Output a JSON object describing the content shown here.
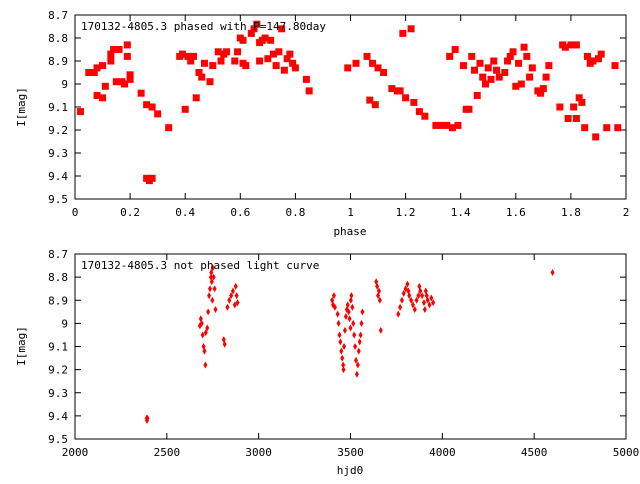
{
  "chart_data": [
    {
      "type": "scatter",
      "title": "170132-4805.3 phased with P=147.80day",
      "xlabel": "phase",
      "ylabel": "I[mag]",
      "xlim": [
        0,
        2
      ],
      "ylim": [
        9.5,
        8.7
      ],
      "y_inverted": true,
      "x_ticks": [
        "0",
        "0.2",
        "0.4",
        "0.6",
        "0.8",
        "1",
        "1.2",
        "1.4",
        "1.6",
        "1.8",
        "2"
      ],
      "y_ticks": [
        "8.7",
        "8.8",
        "8.9",
        "9",
        "9.1",
        "9.2",
        "9.3",
        "9.4",
        "9.5"
      ],
      "grid": false,
      "marker": "square",
      "color": "#ff0000",
      "points": [
        [
          0.02,
          9.12
        ],
        [
          0.05,
          8.95
        ],
        [
          0.07,
          8.95
        ],
        [
          0.08,
          8.93
        ],
        [
          0.08,
          9.05
        ],
        [
          0.1,
          9.06
        ],
        [
          0.1,
          8.92
        ],
        [
          0.11,
          9.01
        ],
        [
          0.13,
          8.9
        ],
        [
          0.13,
          8.87
        ],
        [
          0.14,
          8.85
        ],
        [
          0.15,
          8.99
        ],
        [
          0.16,
          8.85
        ],
        [
          0.17,
          8.99
        ],
        [
          0.18,
          9.0
        ],
        [
          0.19,
          8.88
        ],
        [
          0.19,
          8.83
        ],
        [
          0.2,
          8.96
        ],
        [
          0.2,
          8.98
        ],
        [
          0.24,
          9.04
        ],
        [
          0.26,
          9.09
        ],
        [
          0.26,
          9.41
        ],
        [
          0.27,
          9.42
        ],
        [
          0.28,
          9.41
        ],
        [
          0.28,
          9.1
        ],
        [
          0.3,
          9.13
        ],
        [
          0.34,
          9.19
        ],
        [
          0.38,
          8.88
        ],
        [
          0.39,
          8.87
        ],
        [
          0.4,
          9.11
        ],
        [
          0.41,
          8.88
        ],
        [
          0.42,
          8.9
        ],
        [
          0.43,
          8.88
        ],
        [
          0.44,
          9.06
        ],
        [
          0.45,
          8.95
        ],
        [
          0.46,
          8.97
        ],
        [
          0.47,
          8.91
        ],
        [
          0.49,
          8.99
        ],
        [
          0.5,
          8.92
        ],
        [
          0.52,
          8.86
        ],
        [
          0.53,
          8.9
        ],
        [
          0.54,
          8.87
        ],
        [
          0.55,
          8.86
        ],
        [
          0.58,
          8.9
        ],
        [
          0.59,
          8.86
        ],
        [
          0.6,
          8.8
        ],
        [
          0.61,
          8.81
        ],
        [
          0.61,
          8.91
        ],
        [
          0.62,
          8.92
        ],
        [
          0.64,
          8.78
        ],
        [
          0.65,
          8.76
        ],
        [
          0.66,
          8.74
        ],
        [
          0.67,
          8.82
        ],
        [
          0.67,
          8.9
        ],
        [
          0.68,
          8.81
        ],
        [
          0.69,
          8.8
        ],
        [
          0.7,
          8.89
        ],
        [
          0.71,
          8.81
        ],
        [
          0.72,
          8.87
        ],
        [
          0.73,
          8.92
        ],
        [
          0.74,
          8.86
        ],
        [
          0.75,
          8.76
        ],
        [
          0.76,
          8.94
        ],
        [
          0.77,
          8.89
        ],
        [
          0.78,
          8.87
        ],
        [
          0.79,
          8.91
        ],
        [
          0.8,
          8.93
        ],
        [
          0.84,
          8.98
        ],
        [
          0.85,
          9.03
        ],
        [
          0.99,
          8.93
        ],
        [
          1.02,
          8.91
        ],
        [
          1.06,
          8.88
        ],
        [
          1.07,
          9.07
        ],
        [
          1.08,
          8.91
        ],
        [
          1.09,
          9.09
        ],
        [
          1.1,
          8.93
        ],
        [
          1.12,
          8.95
        ],
        [
          1.15,
          9.02
        ],
        [
          1.17,
          9.03
        ],
        [
          1.18,
          9.03
        ],
        [
          1.19,
          8.78
        ],
        [
          1.2,
          9.06
        ],
        [
          1.22,
          8.76
        ],
        [
          1.23,
          9.08
        ],
        [
          1.25,
          9.12
        ],
        [
          1.27,
          9.14
        ],
        [
          1.31,
          9.18
        ],
        [
          1.33,
          9.18
        ],
        [
          1.35,
          9.18
        ],
        [
          1.36,
          8.88
        ],
        [
          1.37,
          9.19
        ],
        [
          1.38,
          8.85
        ],
        [
          1.39,
          9.18
        ],
        [
          1.41,
          8.92
        ],
        [
          1.42,
          9.11
        ],
        [
          1.43,
          9.11
        ],
        [
          1.44,
          8.88
        ],
        [
          1.45,
          8.94
        ],
        [
          1.46,
          9.05
        ],
        [
          1.47,
          8.91
        ],
        [
          1.48,
          8.97
        ],
        [
          1.49,
          9.0
        ],
        [
          1.5,
          8.93
        ],
        [
          1.51,
          8.98
        ],
        [
          1.52,
          8.9
        ],
        [
          1.53,
          8.94
        ],
        [
          1.54,
          8.97
        ],
        [
          1.56,
          8.95
        ],
        [
          1.57,
          8.9
        ],
        [
          1.58,
          8.88
        ],
        [
          1.59,
          8.86
        ],
        [
          1.6,
          9.01
        ],
        [
          1.61,
          8.91
        ],
        [
          1.62,
          9.0
        ],
        [
          1.63,
          8.84
        ],
        [
          1.64,
          8.88
        ],
        [
          1.65,
          8.97
        ],
        [
          1.66,
          8.93
        ],
        [
          1.68,
          9.03
        ],
        [
          1.69,
          9.04
        ],
        [
          1.7,
          9.02
        ],
        [
          1.71,
          8.97
        ],
        [
          1.72,
          8.92
        ],
        [
          1.76,
          9.1
        ],
        [
          1.77,
          8.83
        ],
        [
          1.78,
          8.84
        ],
        [
          1.79,
          9.15
        ],
        [
          1.8,
          8.83
        ],
        [
          1.81,
          9.1
        ],
        [
          1.82,
          9.15
        ],
        [
          1.82,
          8.83
        ],
        [
          1.83,
          9.06
        ],
        [
          1.84,
          9.08
        ],
        [
          1.85,
          9.19
        ],
        [
          1.86,
          8.88
        ],
        [
          1.87,
          8.91
        ],
        [
          1.88,
          8.9
        ],
        [
          1.89,
          9.23
        ],
        [
          1.9,
          8.89
        ],
        [
          1.91,
          8.87
        ],
        [
          1.93,
          9.19
        ],
        [
          1.96,
          8.92
        ],
        [
          1.97,
          9.19
        ]
      ]
    },
    {
      "type": "scatter",
      "title": "170132-4805.3 not phased light curve",
      "xlabel": "hjd0",
      "ylabel": "I[mag]",
      "xlim": [
        2000,
        5000
      ],
      "ylim": [
        9.5,
        8.7
      ],
      "y_inverted": true,
      "x_ticks": [
        "2000",
        "2500",
        "3000",
        "3500",
        "4000",
        "4500",
        "5000"
      ],
      "y_ticks": [
        "8.7",
        "8.8",
        "8.9",
        "9",
        "9.1",
        "9.2",
        "9.3",
        "9.4",
        "9.5"
      ],
      "grid": false,
      "marker": "diamond",
      "color": "#ff0000",
      "points": [
        [
          2390,
          9.41
        ],
        [
          2392,
          9.42
        ],
        [
          2395,
          9.41
        ],
        [
          2680,
          9.01
        ],
        [
          2685,
          8.98
        ],
        [
          2690,
          9.0
        ],
        [
          2695,
          9.05
        ],
        [
          2700,
          9.1
        ],
        [
          2705,
          9.12
        ],
        [
          2710,
          9.18
        ],
        [
          2712,
          9.04
        ],
        [
          2720,
          9.02
        ],
        [
          2725,
          8.95
        ],
        [
          2730,
          8.88
        ],
        [
          2735,
          8.85
        ],
        [
          2740,
          8.8
        ],
        [
          2742,
          8.78
        ],
        [
          2745,
          8.82
        ],
        [
          2748,
          8.9
        ],
        [
          2750,
          8.76
        ],
        [
          2755,
          8.8
        ],
        [
          2760,
          8.85
        ],
        [
          2765,
          8.94
        ],
        [
          2810,
          9.07
        ],
        [
          2815,
          9.09
        ],
        [
          2830,
          8.93
        ],
        [
          2840,
          8.9
        ],
        [
          2850,
          8.88
        ],
        [
          2860,
          8.86
        ],
        [
          2870,
          8.92
        ],
        [
          2875,
          8.84
        ],
        [
          2880,
          8.88
        ],
        [
          2885,
          8.91
        ],
        [
          3400,
          8.9
        ],
        [
          3405,
          8.92
        ],
        [
          3410,
          8.88
        ],
        [
          3415,
          8.93
        ],
        [
          3430,
          8.96
        ],
        [
          3435,
          9.0
        ],
        [
          3440,
          9.05
        ],
        [
          3445,
          9.08
        ],
        [
          3450,
          9.12
        ],
        [
          3455,
          9.15
        ],
        [
          3460,
          9.18
        ],
        [
          3462,
          9.2
        ],
        [
          3465,
          9.1
        ],
        [
          3470,
          9.03
        ],
        [
          3475,
          8.97
        ],
        [
          3480,
          8.94
        ],
        [
          3485,
          8.92
        ],
        [
          3490,
          8.95
        ],
        [
          3495,
          8.98
        ],
        [
          3500,
          9.02
        ],
        [
          3502,
          8.9
        ],
        [
          3505,
          8.88
        ],
        [
          3510,
          8.93
        ],
        [
          3515,
          9.0
        ],
        [
          3520,
          9.05
        ],
        [
          3525,
          9.1
        ],
        [
          3530,
          9.16
        ],
        [
          3535,
          9.22
        ],
        [
          3540,
          9.18
        ],
        [
          3545,
          9.12
        ],
        [
          3550,
          9.08
        ],
        [
          3555,
          9.05
        ],
        [
          3560,
          9.0
        ],
        [
          3565,
          8.95
        ],
        [
          3640,
          8.82
        ],
        [
          3645,
          8.84
        ],
        [
          3650,
          8.88
        ],
        [
          3655,
          8.86
        ],
        [
          3660,
          8.9
        ],
        [
          3665,
          9.03
        ],
        [
          3760,
          8.96
        ],
        [
          3770,
          8.93
        ],
        [
          3780,
          8.9
        ],
        [
          3790,
          8.87
        ],
        [
          3800,
          8.85
        ],
        [
          3810,
          8.83
        ],
        [
          3815,
          8.86
        ],
        [
          3820,
          8.88
        ],
        [
          3830,
          8.9
        ],
        [
          3840,
          8.92
        ],
        [
          3850,
          8.94
        ],
        [
          3860,
          8.9
        ],
        [
          3870,
          8.88
        ],
        [
          3875,
          8.84
        ],
        [
          3880,
          8.86
        ],
        [
          3890,
          8.88
        ],
        [
          3900,
          8.91
        ],
        [
          3905,
          8.94
        ],
        [
          3910,
          8.86
        ],
        [
          3915,
          8.88
        ],
        [
          3920,
          8.9
        ],
        [
          3930,
          8.92
        ],
        [
          3940,
          8.89
        ],
        [
          3950,
          8.91
        ],
        [
          4600,
          8.78
        ]
      ]
    }
  ]
}
